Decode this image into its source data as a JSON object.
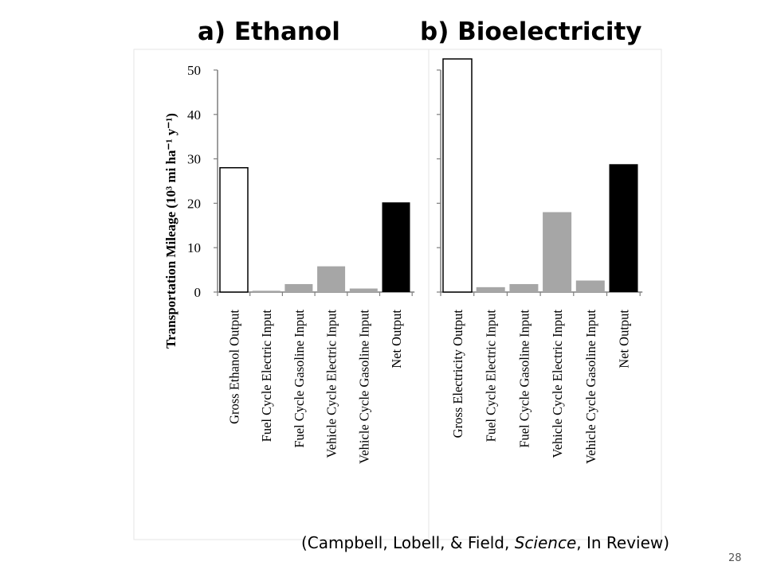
{
  "slide": {
    "number": "28",
    "citation": {
      "open": "(Campbell, Lobell, & Field, ",
      "journal": "Science",
      "close": ", In Review)"
    }
  },
  "colors": {
    "gross_output": "#ffffff",
    "inputs": "#a6a6a6",
    "net_output": "#000000",
    "axis": "#7f7f7f",
    "outline": "#000000"
  },
  "chart_data": [
    {
      "type": "bar",
      "panel_title": "a) Ethanol",
      "ylabel": "Transportation Mileage (10³ mi ha⁻¹ y⁻¹)",
      "ylim": [
        0,
        50
      ],
      "yticks": [
        "0",
        "10",
        "20",
        "30",
        "40",
        "50"
      ],
      "categories": [
        "Gross Ethanol Output",
        "Fuel Cycle Electric Input",
        "Fuel Cycle Gasoline Input",
        "Vehicle Cycle Electric Input",
        "Vehicle Cycle Gasoline Input",
        "Net Output"
      ],
      "values": [
        28,
        0.3,
        1.8,
        5.8,
        0.8,
        20.2
      ],
      "bar_fill": [
        "gross_output",
        "inputs",
        "inputs",
        "inputs",
        "inputs",
        "net_output"
      ]
    },
    {
      "type": "bar",
      "panel_title": "b) Bioelectricity",
      "ylabel": "",
      "ylim": [
        0,
        50
      ],
      "yticks": [],
      "categories": [
        "Gross Electricity Output",
        "Fuel Cycle Electric Input",
        "Fuel Cycle Gasoline Input",
        "Vehicle Cycle Electric Input",
        "Vehicle Cycle Gasoline Input",
        "Net Output"
      ],
      "values": [
        52.5,
        1.1,
        1.8,
        18,
        2.6,
        28.8
      ],
      "bar_fill": [
        "gross_output",
        "inputs",
        "inputs",
        "inputs",
        "inputs",
        "net_output"
      ]
    }
  ]
}
